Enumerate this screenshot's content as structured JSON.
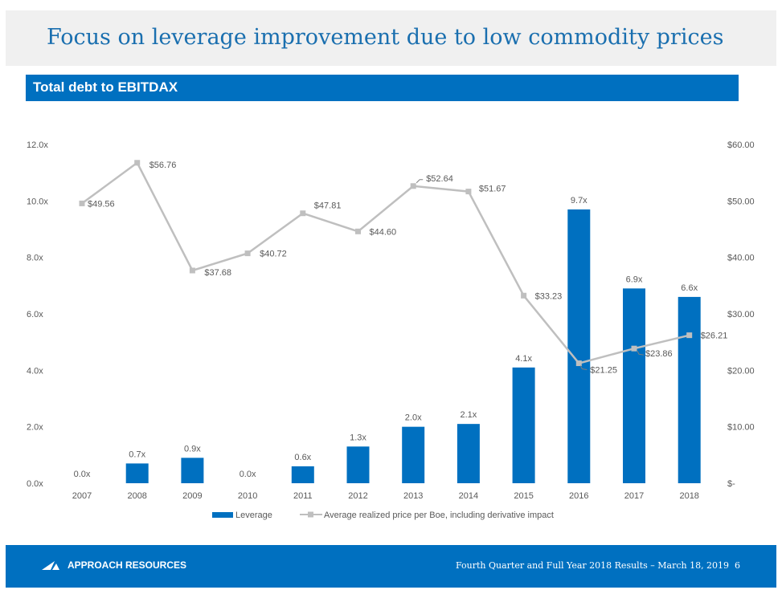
{
  "header": {
    "title": "Focus on leverage improvement due to low commodity prices",
    "subtitle": "Total debt to EBITDAX"
  },
  "colors": {
    "accent": "#0070c0",
    "line": "#bfbfbf",
    "text": "#595959"
  },
  "chart_data": {
    "type": "bar+line",
    "categories": [
      "2007",
      "2008",
      "2009",
      "2010",
      "2011",
      "2012",
      "2013",
      "2014",
      "2015",
      "2016",
      "2017",
      "2018"
    ],
    "series": [
      {
        "name": "Leverage",
        "type": "bar",
        "axis": "left",
        "values": [
          0.0,
          0.7,
          0.9,
          0.0,
          0.6,
          1.3,
          2.0,
          2.1,
          4.1,
          9.7,
          6.9,
          6.6
        ],
        "labels": [
          "0.0x",
          "0.7x",
          "0.9x",
          "0.0x",
          "0.6x",
          "1.3x",
          "2.0x",
          "2.1x",
          "4.1x",
          "9.7x",
          "6.9x",
          "6.6x"
        ]
      },
      {
        "name": "Average realized price per Boe, including derivative impact",
        "type": "line",
        "axis": "right",
        "values": [
          49.56,
          56.76,
          37.68,
          40.72,
          47.81,
          44.6,
          52.64,
          51.67,
          33.23,
          21.25,
          23.86,
          26.21
        ],
        "labels": [
          "$49.56",
          "$56.76",
          "$37.68",
          "$40.72",
          "$47.81",
          "$44.60",
          "$52.64",
          "$51.67",
          "$33.23",
          "$21.25",
          "$23.86",
          "$26.21"
        ]
      }
    ],
    "y_left": {
      "ylim": [
        0,
        12
      ],
      "ticks": [
        0,
        2,
        4,
        6,
        8,
        10,
        12
      ],
      "tick_labels": [
        "0.0x",
        "2.0x",
        "4.0x",
        "6.0x",
        "8.0x",
        "10.0x",
        "12.0x"
      ]
    },
    "y_right": {
      "ylim": [
        0,
        60
      ],
      "ticks": [
        0,
        10,
        20,
        30,
        40,
        50,
        60
      ],
      "tick_labels": [
        "$-",
        "$10.00",
        "$20.00",
        "$30.00",
        "$40.00",
        "$50.00",
        "$60.00"
      ]
    },
    "legend": {
      "position": "bottom",
      "items": [
        "Leverage",
        "Average realized price per Boe, including derivative impact"
      ]
    },
    "grid": false
  },
  "footer": {
    "company": "APPROACH RESOURCES",
    "text": "Fourth Quarter and Full Year 2018 Results – March 18, 2019",
    "page": "6"
  }
}
